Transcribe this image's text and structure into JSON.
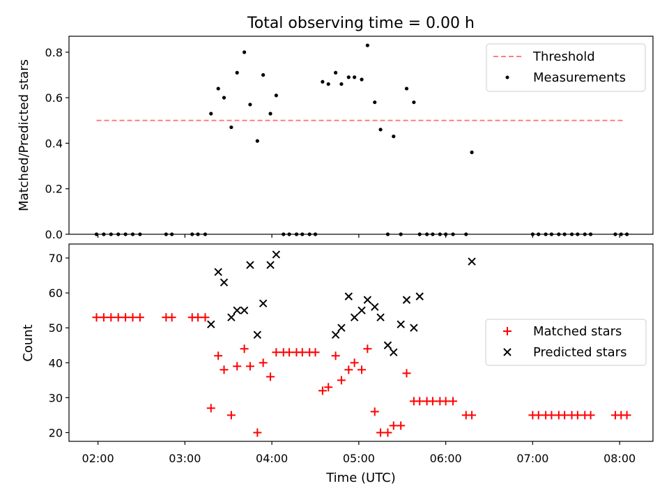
{
  "figure": {
    "title": "Total observing time = 0.00 h"
  },
  "colors": {
    "threshold": "#ff7f7f",
    "measurements": "#000000",
    "matched": "#ff0000",
    "predicted": "#000000"
  },
  "chart_data": [
    {
      "type": "scatter",
      "panel": "top",
      "ylabel": "Matched/Predicted stars",
      "ylim": [
        0,
        0.87
      ],
      "yticks": [
        0.0,
        0.2,
        0.4,
        0.6,
        0.8
      ],
      "ytick_labels": [
        "0.0",
        "0.2",
        "0.4",
        "0.6",
        "0.8"
      ],
      "xlim": [
        "01:40",
        "08:23"
      ],
      "xtick_labels": [],
      "legend_position": "top-right",
      "threshold": {
        "name": "Threshold",
        "y": 0.5,
        "x_start": "01:59",
        "x_end": "08:03"
      },
      "series": [
        {
          "name": "Measurements",
          "x": [
            "01:59",
            "02:04",
            "02:09",
            "02:14",
            "02:19",
            "02:24",
            "02:29",
            "02:47",
            "02:51",
            "03:05",
            "03:09",
            "03:14",
            "03:18",
            "03:23",
            "03:27",
            "03:32",
            "03:36",
            "03:41",
            "03:45",
            "03:50",
            "03:54",
            "03:59",
            "04:03",
            "04:08",
            "04:12",
            "04:17",
            "04:21",
            "04:26",
            "04:30",
            "04:35",
            "04:39",
            "04:44",
            "04:48",
            "04:53",
            "04:57",
            "05:02",
            "05:06",
            "05:11",
            "05:15",
            "05:20",
            "05:24",
            "05:29",
            "05:33",
            "05:38",
            "05:42",
            "05:47",
            "05:51",
            "05:56",
            "06:00",
            "06:05",
            "06:14",
            "06:18",
            "07:00",
            "07:04",
            "07:09",
            "07:13",
            "07:18",
            "07:22",
            "07:27",
            "07:31",
            "07:36",
            "07:40",
            "07:57",
            "08:01",
            "08:05"
          ],
          "y": [
            0,
            0,
            0,
            0,
            0,
            0,
            0,
            0,
            0,
            0,
            0,
            0,
            0.53,
            0.64,
            0.6,
            0.47,
            0.71,
            0.8,
            0.57,
            0.41,
            0.7,
            0.53,
            0.61,
            0,
            0,
            0,
            0,
            0,
            0,
            0.67,
            0.66,
            0.71,
            0.66,
            0.69,
            0.69,
            0.68,
            0.83,
            0.58,
            0.46,
            0,
            0.43,
            0,
            0.64,
            0.58,
            0,
            0,
            0,
            0,
            0,
            0,
            0,
            0.36,
            0,
            0,
            0,
            0,
            0,
            0,
            0,
            0,
            0,
            0,
            0,
            0,
            0
          ]
        }
      ]
    },
    {
      "type": "scatter",
      "panel": "bottom",
      "xlabel": "Time (UTC)",
      "ylabel": "Count",
      "ylim": [
        17.5,
        74
      ],
      "yticks": [
        20,
        30,
        40,
        50,
        60,
        70
      ],
      "ytick_labels": [
        "20",
        "30",
        "40",
        "50",
        "60",
        "70"
      ],
      "xlim": [
        "01:40",
        "08:23"
      ],
      "xticks": [
        "02:00",
        "03:00",
        "04:00",
        "05:00",
        "06:00",
        "07:00",
        "08:00"
      ],
      "xtick_labels": [
        "02:00",
        "03:00",
        "04:00",
        "05:00",
        "06:00",
        "07:00",
        "08:00"
      ],
      "legend_position": "center-right",
      "series": [
        {
          "name": "Matched stars",
          "x": [
            "01:59",
            "02:04",
            "02:09",
            "02:14",
            "02:19",
            "02:24",
            "02:29",
            "02:47",
            "02:51",
            "03:05",
            "03:09",
            "03:14",
            "03:18",
            "03:23",
            "03:27",
            "03:32",
            "03:36",
            "03:41",
            "03:45",
            "03:50",
            "03:54",
            "03:59",
            "04:03",
            "04:08",
            "04:12",
            "04:17",
            "04:21",
            "04:26",
            "04:30",
            "04:35",
            "04:39",
            "04:44",
            "04:48",
            "04:53",
            "04:57",
            "05:02",
            "05:06",
            "05:11",
            "05:15",
            "05:20",
            "05:24",
            "05:29",
            "05:33",
            "05:38",
            "05:42",
            "05:47",
            "05:51",
            "05:56",
            "06:00",
            "06:05",
            "06:14",
            "06:18",
            "07:00",
            "07:04",
            "07:09",
            "07:13",
            "07:18",
            "07:22",
            "07:27",
            "07:31",
            "07:36",
            "07:40",
            "07:57",
            "08:01",
            "08:05"
          ],
          "y": [
            53,
            53,
            53,
            53,
            53,
            53,
            53,
            53,
            53,
            53,
            53,
            53,
            27,
            42,
            38,
            25,
            39,
            44,
            39,
            20,
            40,
            36,
            43,
            43,
            43,
            43,
            43,
            43,
            43,
            32,
            33,
            42,
            35,
            38,
            40,
            38,
            44,
            26,
            20,
            20,
            22,
            22,
            37,
            29,
            29,
            29,
            29,
            29,
            29,
            29,
            25,
            25,
            25,
            25,
            25,
            25,
            25,
            25,
            25,
            25,
            25,
            25,
            25,
            25,
            25
          ]
        },
        {
          "name": "Predicted stars",
          "x": [
            "03:18",
            "03:23",
            "03:27",
            "03:32",
            "03:36",
            "03:41",
            "03:45",
            "03:50",
            "03:54",
            "03:59",
            "04:03",
            "04:44",
            "04:48",
            "04:53",
            "04:57",
            "05:02",
            "05:06",
            "05:11",
            "05:15",
            "05:20",
            "05:24",
            "05:29",
            "05:33",
            "05:38",
            "05:42",
            "06:18"
          ],
          "y": [
            51,
            66,
            63,
            53,
            55,
            55,
            68,
            48,
            57,
            68,
            71,
            48,
            50,
            59,
            53,
            55,
            58,
            56,
            53,
            45,
            43,
            51,
            58,
            50,
            59,
            69
          ]
        }
      ]
    }
  ]
}
